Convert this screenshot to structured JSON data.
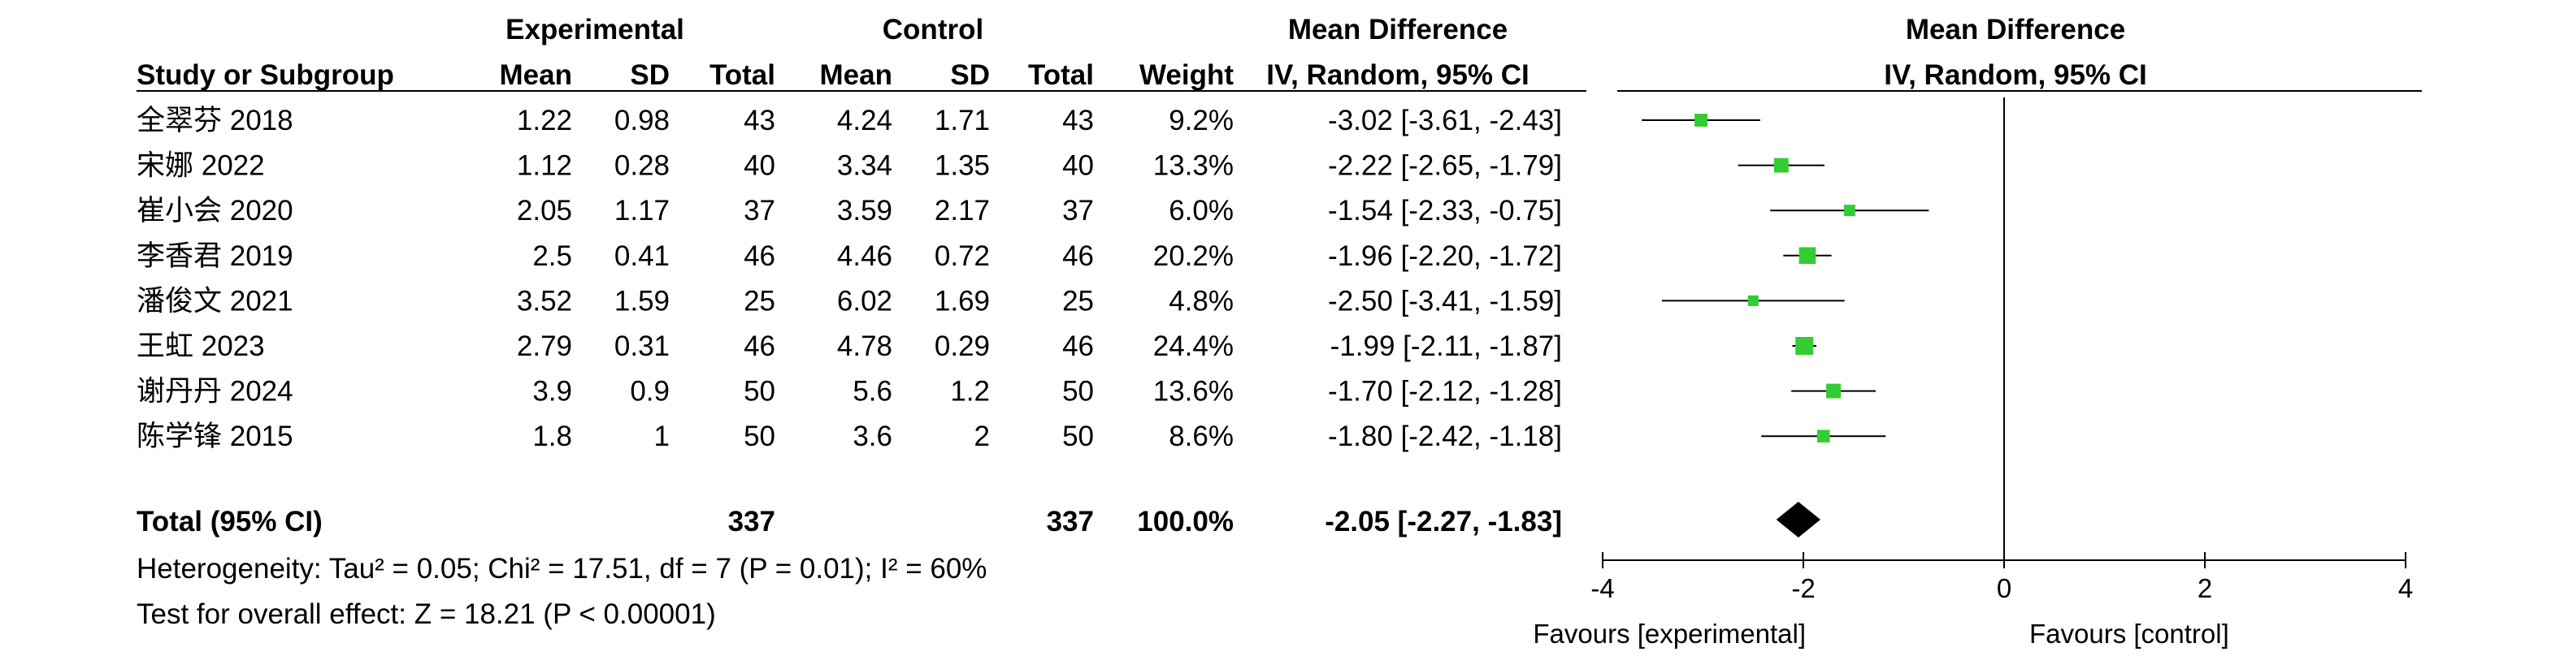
{
  "headers": {
    "group1": "Experimental",
    "group2": "Control",
    "md_table": "Mean Difference",
    "md_table_method": "IV, Random, 95% CI",
    "md_plot": "Mean Difference",
    "md_plot_method": "IV, Random, 95% CI",
    "study": "Study or Subgroup",
    "mean1": "Mean",
    "sd1": "SD",
    "total1": "Total",
    "mean2": "Mean",
    "sd2": "SD",
    "total2": "Total",
    "weight": "Weight"
  },
  "studies": [
    {
      "name": "全翠芬 2018",
      "mean1": "1.22",
      "sd1": "0.98",
      "n1": "43",
      "mean2": "4.24",
      "sd2": "1.71",
      "n2": "43",
      "weight": "9.2%",
      "ci": "-3.02 [-3.61, -2.43]"
    },
    {
      "name": "宋娜 2022",
      "mean1": "1.12",
      "sd1": "0.28",
      "n1": "40",
      "mean2": "3.34",
      "sd2": "1.35",
      "n2": "40",
      "weight": "13.3%",
      "ci": "-2.22 [-2.65, -1.79]"
    },
    {
      "name": "崔小会 2020",
      "mean1": "2.05",
      "sd1": "1.17",
      "n1": "37",
      "mean2": "3.59",
      "sd2": "2.17",
      "n2": "37",
      "weight": "6.0%",
      "ci": "-1.54 [-2.33, -0.75]"
    },
    {
      "name": "李香君 2019",
      "mean1": "2.5",
      "sd1": "0.41",
      "n1": "46",
      "mean2": "4.46",
      "sd2": "0.72",
      "n2": "46",
      "weight": "20.2%",
      "ci": "-1.96 [-2.20, -1.72]"
    },
    {
      "name": "潘俊文 2021",
      "mean1": "3.52",
      "sd1": "1.59",
      "n1": "25",
      "mean2": "6.02",
      "sd2": "1.69",
      "n2": "25",
      "weight": "4.8%",
      "ci": "-2.50 [-3.41, -1.59]"
    },
    {
      "name": "王虹 2023",
      "mean1": "2.79",
      "sd1": "0.31",
      "n1": "46",
      "mean2": "4.78",
      "sd2": "0.29",
      "n2": "46",
      "weight": "24.4%",
      "ci": "-1.99 [-2.11, -1.87]"
    },
    {
      "name": "谢丹丹 2024",
      "mean1": "3.9",
      "sd1": "0.9",
      "n1": "50",
      "mean2": "5.6",
      "sd2": "1.2",
      "n2": "50",
      "weight": "13.6%",
      "ci": "-1.70 [-2.12, -1.28]"
    },
    {
      "name": "陈学锋 2015",
      "mean1": "1.8",
      "sd1": "1",
      "n1": "50",
      "mean2": "3.6",
      "sd2": "2",
      "n2": "50",
      "weight": "8.6%",
      "ci": "-1.80 [-2.42, -1.18]"
    }
  ],
  "total": {
    "label": "Total (95% CI)",
    "n1": "337",
    "n2": "337",
    "weight": "100.0%",
    "ci": "-2.05 [-2.27, -1.83]"
  },
  "heterogeneity": "Heterogeneity: Tau² = 0.05; Chi² = 17.51, df = 7 (P = 0.01); I² = 60%",
  "overall_effect": "Test for overall effect: Z = 18.21 (P < 0.00001)",
  "axis": {
    "favours_left": "Favours [experimental]",
    "favours_right": "Favours [control]"
  },
  "chart_data": {
    "type": "forest",
    "xlim": [
      -4,
      4
    ],
    "ticks": [
      -4,
      -2,
      0,
      2,
      4
    ],
    "tick_labels": [
      "-4",
      "-2",
      "0",
      "2",
      "4"
    ],
    "reference_line": 0,
    "point_color": "#33cc33",
    "studies": [
      {
        "md": -3.02,
        "lo": -3.61,
        "hi": -2.43,
        "weight": 9.2
      },
      {
        "md": -2.22,
        "lo": -2.65,
        "hi": -1.79,
        "weight": 13.3
      },
      {
        "md": -1.54,
        "lo": -2.33,
        "hi": -0.75,
        "weight": 6.0
      },
      {
        "md": -1.96,
        "lo": -2.2,
        "hi": -1.72,
        "weight": 20.2
      },
      {
        "md": -2.5,
        "lo": -3.41,
        "hi": -1.59,
        "weight": 4.8
      },
      {
        "md": -1.99,
        "lo": -2.11,
        "hi": -1.87,
        "weight": 24.4
      },
      {
        "md": -1.7,
        "lo": -2.12,
        "hi": -1.28,
        "weight": 13.6
      },
      {
        "md": -1.8,
        "lo": -2.42,
        "hi": -1.18,
        "weight": 8.6
      }
    ],
    "pooled": {
      "md": -2.05,
      "lo": -2.27,
      "hi": -1.83
    }
  }
}
